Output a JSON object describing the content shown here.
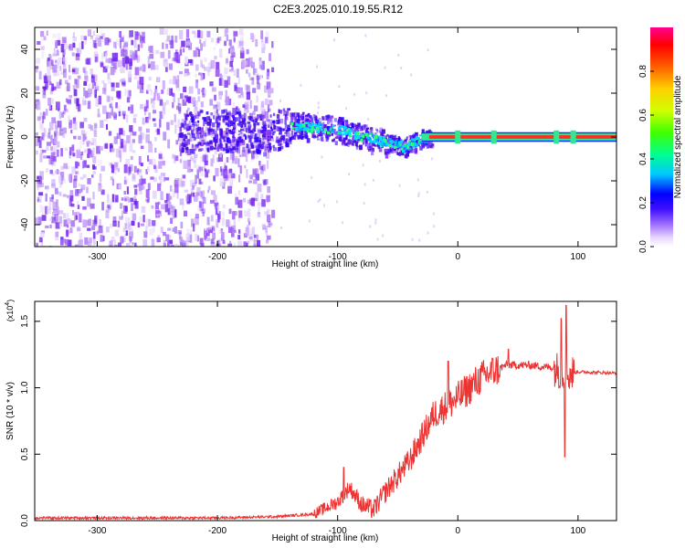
{
  "figure": {
    "title": "C2E3.2025.010.19.55.R12",
    "colors": {
      "snr_line": "#ee3333",
      "axis": "#000000",
      "noise": "#7a2af0"
    }
  },
  "chart_data": [
    {
      "type": "heatmap",
      "name": "spectrogram",
      "xlabel": "Height of straight line (km)",
      "ylabel": "Frequency (Hz)",
      "xlim": [
        -352,
        132
      ],
      "ylim": [
        -50,
        50
      ],
      "x_ticks": [
        -300,
        -200,
        -100,
        0,
        100
      ],
      "y_ticks": [
        -40,
        -20,
        0,
        20,
        40
      ],
      "noise_region_x": [
        -352,
        -155
      ],
      "signal_track": [
        {
          "x": -230,
          "freq": 3
        },
        {
          "x": -200,
          "freq": 4
        },
        {
          "x": -160,
          "freq": 2
        },
        {
          "x": -140,
          "freq": 6
        },
        {
          "x": -120,
          "freq": 5
        },
        {
          "x": -100,
          "freq": 4
        },
        {
          "x": -80,
          "freq": 1
        },
        {
          "x": -60,
          "freq": -2
        },
        {
          "x": -45,
          "freq": -4
        },
        {
          "x": -30,
          "freq": 0
        },
        {
          "x": 0,
          "freq": 1
        },
        {
          "x": 50,
          "freq": 0
        },
        {
          "x": 100,
          "freq": 0
        },
        {
          "x": 132,
          "freq": 0
        }
      ],
      "colorbar": {
        "label": "Normalized spectral amplitude",
        "range": [
          0,
          1
        ],
        "ticks": [
          "0.0",
          "0.2",
          "0.4",
          "0.6",
          "0.8"
        ]
      }
    },
    {
      "type": "line",
      "name": "snr",
      "xlabel": "Height of straight line (km)",
      "ylabel": "SNR (10 * v/v)",
      "scale_note": "(x10",
      "scale_exp": "4",
      "scale_close": ")",
      "xlim": [
        -352,
        132
      ],
      "ylim": [
        0,
        1.65
      ],
      "x_ticks": [
        -300,
        -200,
        -100,
        0,
        100
      ],
      "y_ticks": [
        "0.0",
        "0.5",
        "1.0",
        "1.5"
      ],
      "series": [
        {
          "name": "SNR",
          "points": [
            {
              "x": -352,
              "y": 0.02
            },
            {
              "x": -200,
              "y": 0.02
            },
            {
              "x": -150,
              "y": 0.03
            },
            {
              "x": -120,
              "y": 0.05
            },
            {
              "x": -100,
              "y": 0.14
            },
            {
              "x": -90,
              "y": 0.25
            },
            {
              "x": -80,
              "y": 0.12
            },
            {
              "x": -70,
              "y": 0.08
            },
            {
              "x": -60,
              "y": 0.22
            },
            {
              "x": -40,
              "y": 0.45
            },
            {
              "x": -20,
              "y": 0.8
            },
            {
              "x": 0,
              "y": 0.92
            },
            {
              "x": 20,
              "y": 1.08
            },
            {
              "x": 40,
              "y": 1.17
            },
            {
              "x": 60,
              "y": 1.17
            },
            {
              "x": 80,
              "y": 1.15
            },
            {
              "x": 90,
              "y": 1.1
            },
            {
              "x": 100,
              "y": 1.12
            },
            {
              "x": 132,
              "y": 1.11
            }
          ],
          "spikes": [
            {
              "x": -95,
              "y": 0.4
            },
            {
              "x": -8,
              "y": 1.2
            },
            {
              "x": 42,
              "y": 1.29
            },
            {
              "x": 86,
              "y": 1.52
            },
            {
              "x": 90,
              "y": 1.62
            },
            {
              "x": 89,
              "y": 0.48
            }
          ]
        }
      ]
    }
  ]
}
